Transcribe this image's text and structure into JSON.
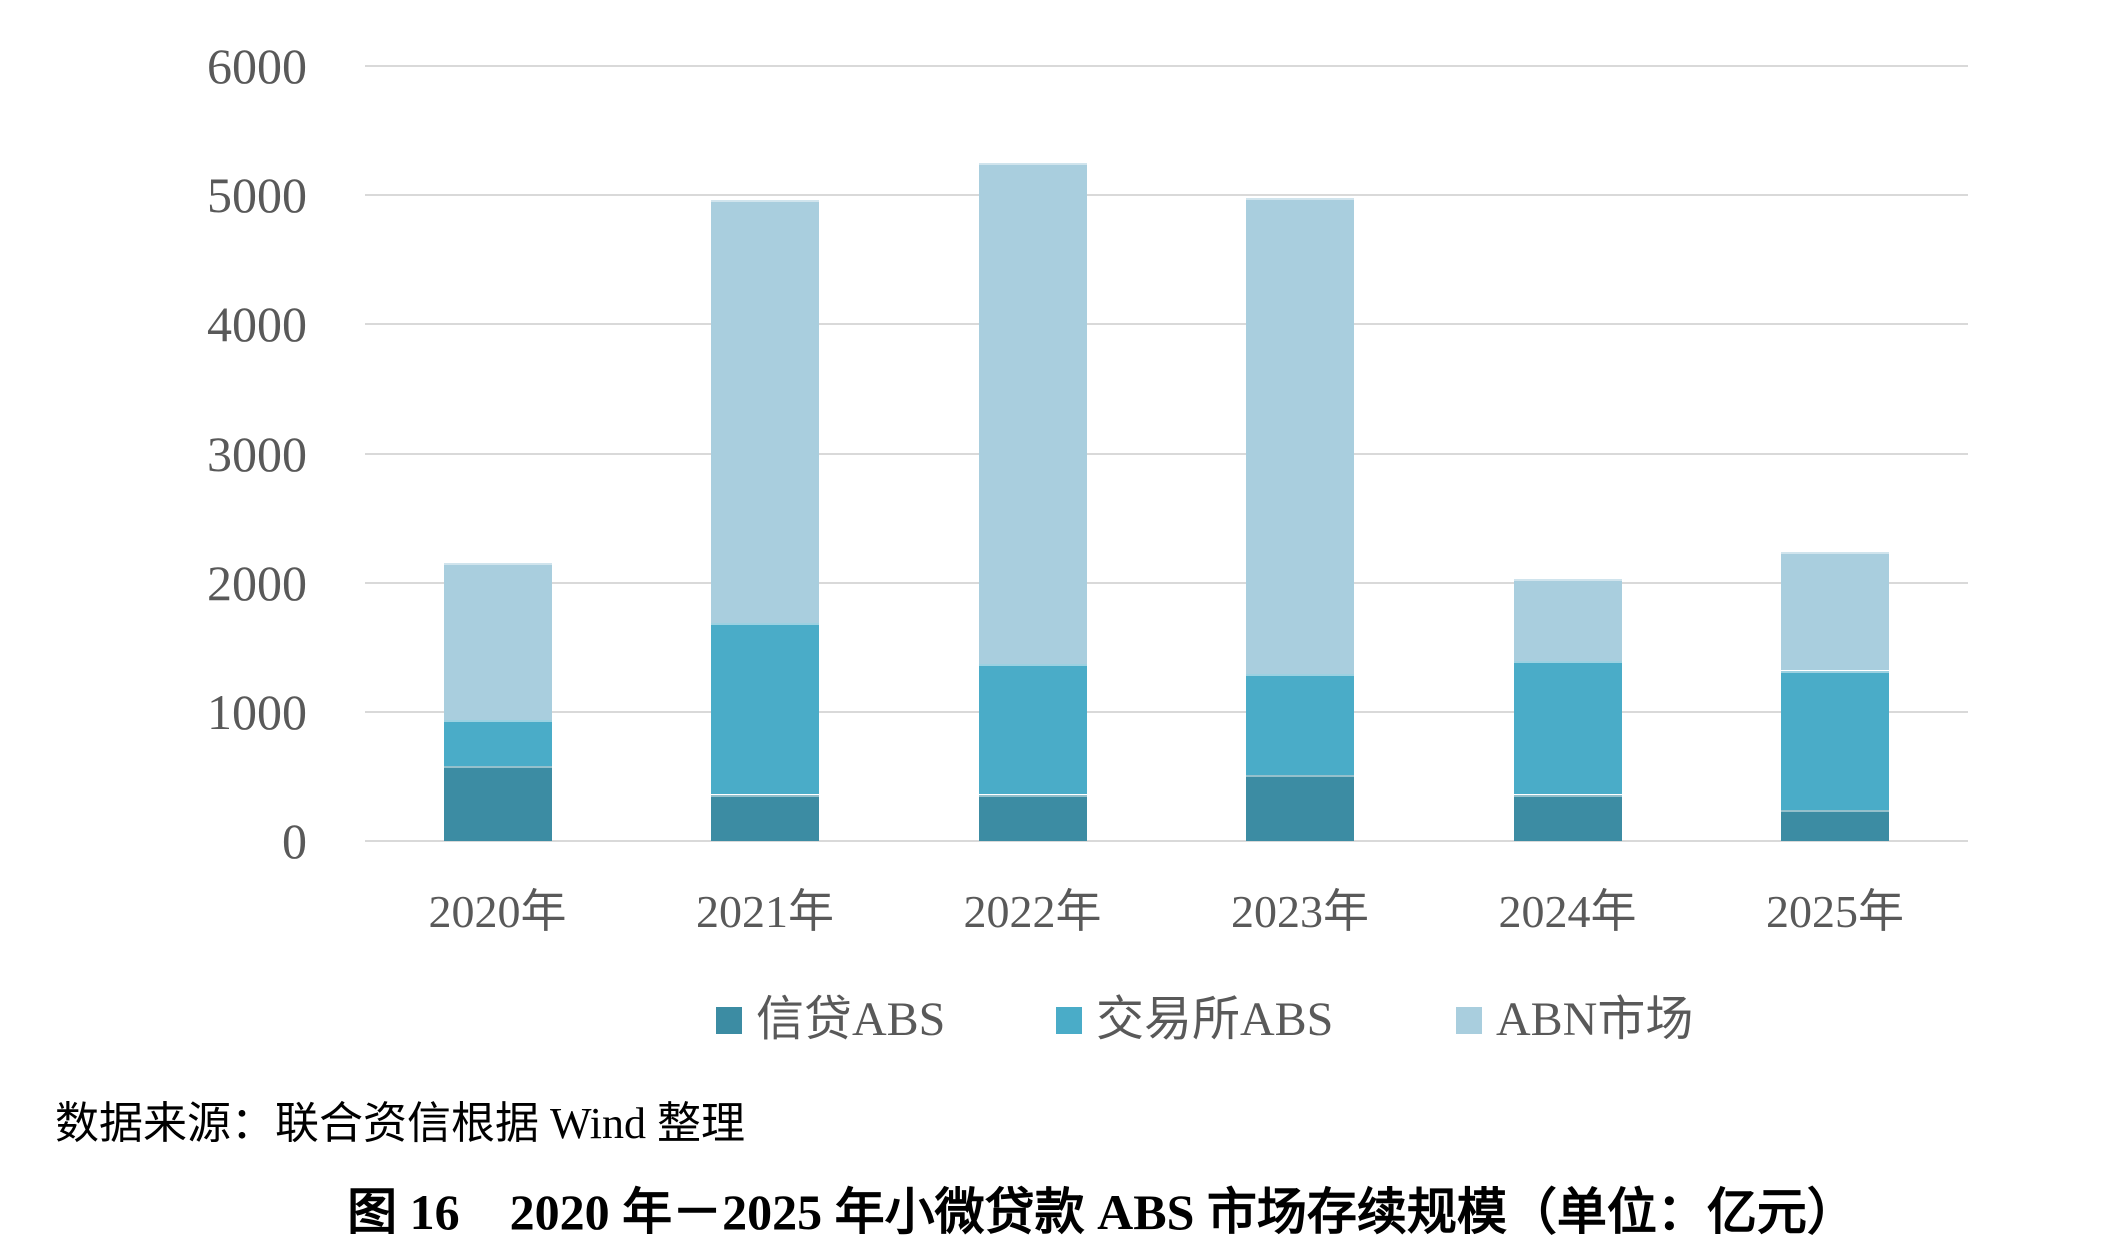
{
  "chart_data": {
    "type": "bar",
    "stacked": true,
    "title": "图 16　2020 年－2025 年小微贷款 ABS 市场存续规模（单位：亿元）",
    "source_note": "数据来源：联合资信根据 Wind 整理",
    "unit": "亿元",
    "categories": [
      "2020年",
      "2021年",
      "2022年",
      "2023年",
      "2024年",
      "2025年"
    ],
    "series": [
      {
        "name": "信贷ABS",
        "color": "#3C8CA3",
        "values": [
          580,
          360,
          360,
          510,
          360,
          240
        ]
      },
      {
        "name": "交易所ABS",
        "color": "#4AACC8",
        "values": [
          360,
          1330,
          1010,
          780,
          1030,
          1080
        ]
      },
      {
        "name": "ABN市场",
        "color": "#A9CEDE",
        "values": [
          1210,
          3270,
          3880,
          3690,
          640,
          920
        ]
      }
    ],
    "ylim": [
      0,
      6000
    ],
    "yticks": [
      0,
      1000,
      2000,
      3000,
      4000,
      5000,
      6000
    ],
    "grid": true,
    "legend_position": "bottom",
    "gridline_color": "#D9D9D9",
    "axis_text_color": "#595959"
  }
}
